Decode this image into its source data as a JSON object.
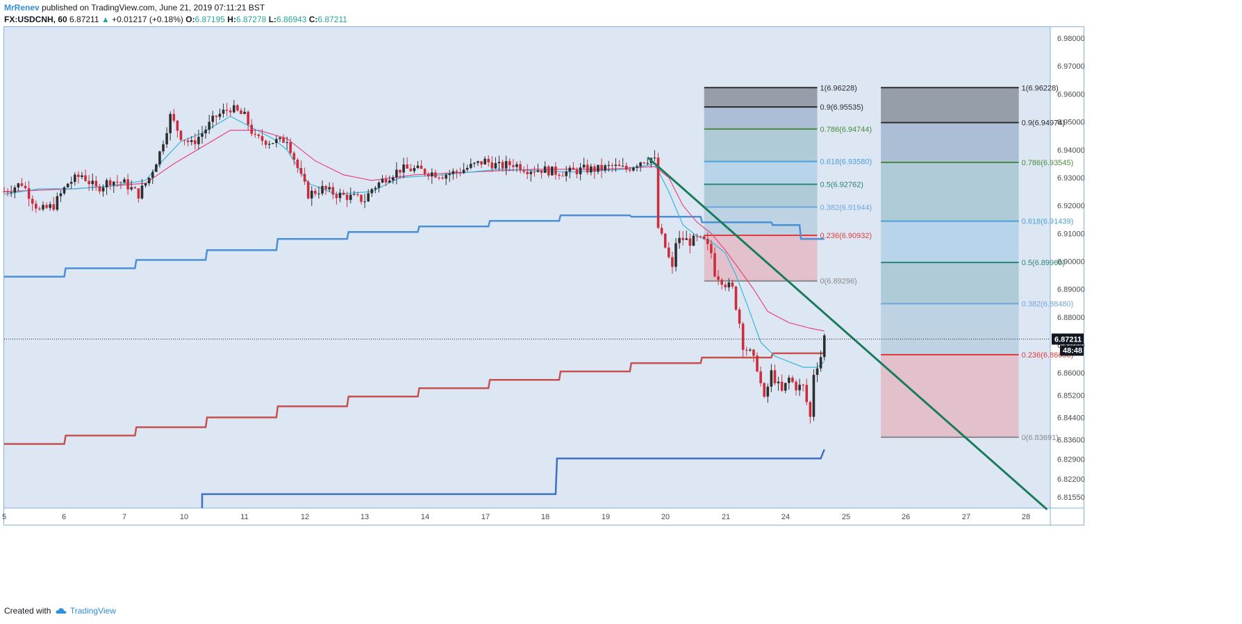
{
  "header": {
    "author": "MrRenev",
    "published": "published on TradingView.com, June 21, 2019 07:11:21 BST",
    "symbol": "FX:USDCNH, 60",
    "last": "6.87211",
    "change": "+0.01217 (+0.18%)",
    "o_label": "O:",
    "o_value": "6.87195",
    "h_label": "H:",
    "h_value": "6.87278",
    "l_label": "L:",
    "l_value": "6.86943",
    "c_label": "C:",
    "c_value": "6.87211"
  },
  "footer": {
    "created_with": "Created with",
    "brand": "TradingView"
  },
  "chart_data": {
    "type": "candlestick",
    "symbol": "FX:USDCNH",
    "interval": "60",
    "ylim": [
      6.8115,
      6.984
    ],
    "price_ticks": [
      "6.98000",
      "6.97000",
      "6.96000",
      "6.95000",
      "6.94000",
      "6.93000",
      "6.92000",
      "6.91000",
      "6.90000",
      "6.89000",
      "6.88000",
      "6.87000",
      "6.86000",
      "6.85200",
      "6.84400",
      "6.83600",
      "6.82900",
      "6.82200",
      "6.81550"
    ],
    "x_ticks": [
      "5",
      "6",
      "7",
      "10",
      "11",
      "12",
      "13",
      "14",
      "17",
      "18",
      "19",
      "20",
      "21",
      "24",
      "25",
      "26",
      "27",
      "28"
    ],
    "last_price_label": "6.87211",
    "countdown": "48:48",
    "colors": {
      "background": "#dde7f3",
      "up": "#2e2e2e",
      "down": "#cc2d3d",
      "ema_fast": "#3ab5dc",
      "ema_slow": "#e8457f",
      "trendline": "#1b7a5c",
      "upper_band": "#4a90d9",
      "middle_band": "#c4504f",
      "lower_band": "#3e6fc2"
    },
    "candles_anchor_path": [
      [
        0,
        6.925
      ],
      [
        5,
        6.928
      ],
      [
        10,
        6.918
      ],
      [
        14,
        6.92
      ],
      [
        18,
        6.928
      ],
      [
        22,
        6.931
      ],
      [
        26,
        6.926
      ],
      [
        30,
        6.929
      ],
      [
        34,
        6.928
      ],
      [
        38,
        6.924
      ],
      [
        41,
        6.93
      ],
      [
        44,
        6.939
      ],
      [
        47,
        6.952
      ],
      [
        50,
        6.945
      ],
      [
        53,
        6.942
      ],
      [
        56,
        6.946
      ],
      [
        60,
        6.952
      ],
      [
        64,
        6.955
      ],
      [
        68,
        6.952
      ],
      [
        71,
        6.944
      ],
      [
        75,
        6.943
      ],
      [
        78,
        6.943
      ],
      [
        80,
        6.944
      ],
      [
        82,
        6.937
      ],
      [
        84,
        6.93
      ],
      [
        86,
        6.924
      ],
      [
        90,
        6.926
      ],
      [
        94,
        6.924
      ],
      [
        98,
        6.923
      ],
      [
        102,
        6.922
      ],
      [
        104,
        6.926
      ],
      [
        108,
        6.93
      ],
      [
        112,
        6.933
      ],
      [
        116,
        6.933
      ],
      [
        120,
        6.932
      ],
      [
        124,
        6.931
      ],
      [
        128,
        6.932
      ],
      [
        132,
        6.934
      ],
      [
        136,
        6.936
      ],
      [
        140,
        6.934
      ],
      [
        144,
        6.935
      ],
      [
        148,
        6.933
      ],
      [
        152,
        6.933
      ],
      [
        156,
        6.932
      ],
      [
        160,
        6.932
      ],
      [
        164,
        6.933
      ],
      [
        168,
        6.933
      ],
      [
        172,
        6.934
      ],
      [
        176,
        6.933
      ],
      [
        180,
        6.936
      ],
      [
        183,
        6.937
      ],
      [
        184,
        6.936
      ],
      [
        185,
        6.912
      ],
      [
        187,
        6.905
      ],
      [
        189,
        6.897
      ],
      [
        190,
        6.907
      ],
      [
        192,
        6.908
      ],
      [
        194,
        6.907
      ],
      [
        196,
        6.908
      ],
      [
        198,
        6.907
      ],
      [
        200,
        6.903
      ],
      [
        201,
        6.896
      ],
      [
        204,
        6.892
      ],
      [
        206,
        6.89
      ],
      [
        208,
        6.878
      ],
      [
        209,
        6.87
      ],
      [
        211,
        6.867
      ],
      [
        213,
        6.862
      ],
      [
        215,
        6.85
      ],
      [
        217,
        6.86
      ],
      [
        220,
        6.853
      ],
      [
        222,
        6.858
      ],
      [
        224,
        6.855
      ],
      [
        226,
        6.855
      ],
      [
        228,
        6.844
      ],
      [
        229,
        6.86
      ],
      [
        231,
        6.866
      ],
      [
        232,
        6.873
      ]
    ],
    "ema_fast_path": [
      [
        0,
        6.924
      ],
      [
        10,
        6.926
      ],
      [
        20,
        6.926
      ],
      [
        30,
        6.927
      ],
      [
        40,
        6.929
      ],
      [
        44,
        6.935
      ],
      [
        50,
        6.943
      ],
      [
        56,
        6.946
      ],
      [
        64,
        6.952
      ],
      [
        70,
        6.948
      ],
      [
        76,
        6.944
      ],
      [
        80,
        6.94
      ],
      [
        86,
        6.928
      ],
      [
        94,
        6.924
      ],
      [
        104,
        6.925
      ],
      [
        112,
        6.93
      ],
      [
        124,
        6.931
      ],
      [
        140,
        6.933
      ],
      [
        160,
        6.932
      ],
      [
        176,
        6.933
      ],
      [
        184,
        6.935
      ],
      [
        188,
        6.925
      ],
      [
        192,
        6.913
      ],
      [
        196,
        6.909
      ],
      [
        200,
        6.907
      ],
      [
        204,
        6.903
      ],
      [
        207,
        6.895
      ],
      [
        210,
        6.885
      ],
      [
        214,
        6.871
      ],
      [
        218,
        6.866
      ],
      [
        222,
        6.864
      ],
      [
        226,
        6.862
      ],
      [
        230,
        6.862
      ],
      [
        232,
        6.864
      ]
    ],
    "ema_slow_path": [
      [
        0,
        6.925
      ],
      [
        20,
        6.926
      ],
      [
        40,
        6.928
      ],
      [
        48,
        6.935
      ],
      [
        56,
        6.941
      ],
      [
        64,
        6.947
      ],
      [
        72,
        6.947
      ],
      [
        80,
        6.944
      ],
      [
        88,
        6.936
      ],
      [
        96,
        6.931
      ],
      [
        104,
        6.929
      ],
      [
        116,
        6.931
      ],
      [
        132,
        6.932
      ],
      [
        150,
        6.933
      ],
      [
        170,
        6.933
      ],
      [
        184,
        6.934
      ],
      [
        188,
        6.93
      ],
      [
        192,
        6.92
      ],
      [
        196,
        6.914
      ],
      [
        200,
        6.91
      ],
      [
        204,
        6.904
      ],
      [
        208,
        6.897
      ],
      [
        212,
        6.89
      ],
      [
        216,
        6.882
      ],
      [
        222,
        6.878
      ],
      [
        228,
        6.876
      ],
      [
        232,
        6.875
      ]
    ],
    "upper_band_steps": [
      [
        0,
        6.8945
      ],
      [
        17,
        6.8975
      ],
      [
        37,
        6.9005
      ],
      [
        57,
        6.904
      ],
      [
        77,
        6.908
      ],
      [
        97,
        6.9105
      ],
      [
        117,
        6.9125
      ],
      [
        137,
        6.9145
      ],
      [
        157,
        6.9165
      ],
      [
        177,
        6.916
      ],
      [
        197,
        6.914
      ],
      [
        217,
        6.913
      ],
      [
        225,
        6.908
      ]
    ],
    "middle_band_steps": [
      [
        0,
        6.8345
      ],
      [
        17,
        6.8375
      ],
      [
        37,
        6.8405
      ],
      [
        57,
        6.844
      ],
      [
        77,
        6.848
      ],
      [
        97,
        6.8515
      ],
      [
        117,
        6.8545
      ],
      [
        137,
        6.8575
      ],
      [
        157,
        6.8605
      ],
      [
        177,
        6.8635
      ],
      [
        197,
        6.8655
      ],
      [
        217,
        6.867
      ]
    ],
    "lower_band_steps": [
      [
        56,
        6.8165
      ],
      [
        156,
        6.8293
      ]
    ],
    "trendline": {
      "from": [
        182,
        6.9373
      ],
      "to": [
        295,
        6.811
      ]
    },
    "fib_left": {
      "from_x": 198,
      "to_x": 230,
      "levels": [
        {
          "ratio": "1",
          "price": 6.96228,
          "label": "1(6.96228)",
          "color": "#2b2b2b",
          "fill": "#8e97a1"
        },
        {
          "ratio": "0.9",
          "price": 6.95535,
          "label": "0.9(6.95535)",
          "color": "#2b2b2b",
          "fill": "#a6b9d1"
        },
        {
          "ratio": "0.786",
          "price": 6.94744,
          "label": "0.786(6.94744)",
          "color": "#4a8a3a",
          "fill": "#a9c8d4"
        },
        {
          "ratio": "0.618",
          "price": 6.9358,
          "label": "0.618(6.93580)",
          "color": "#4c9fd8",
          "fill": "#b4d2ea"
        },
        {
          "ratio": "0.5",
          "price": 6.92762,
          "label": "0.5(6.92762)",
          "color": "#2a8474",
          "fill": "#a9c8d4"
        },
        {
          "ratio": "0.382",
          "price": 6.91944,
          "label": "0.382(6.91944)",
          "color": "#6fa6de",
          "fill": "#b9d0e2"
        },
        {
          "ratio": "0.236",
          "price": 6.90932,
          "label": "0.236(6.90932)",
          "color": "#e23b3b",
          "fill": "#e2bcc8"
        },
        {
          "ratio": "0",
          "price": 6.89296,
          "label": "0(6.89296)",
          "color": "#888888",
          "fill": null
        }
      ]
    },
    "fib_right": {
      "from_x": 248,
      "to_x": 287,
      "levels": [
        {
          "ratio": "1",
          "price": 6.96228,
          "label": "1(6.96228)",
          "color": "#2b2b2b",
          "fill": "#8e97a1"
        },
        {
          "ratio": "0.9",
          "price": 6.94974,
          "label": "0.9(6.94974)",
          "color": "#2b2b2b",
          "fill": "#a6b9d1"
        },
        {
          "ratio": "0.786",
          "price": 6.93545,
          "label": "0.786(6.93545)",
          "color": "#4a8a3a",
          "fill": "#a9c8d4"
        },
        {
          "ratio": "0.618",
          "price": 6.91439,
          "label": "0.618(6.91439)",
          "color": "#4c9fd8",
          "fill": "#b4d2ea"
        },
        {
          "ratio": "0.5",
          "price": 6.8996,
          "label": "0.5(6.89960)",
          "color": "#2a8474",
          "fill": "#a9c8d4"
        },
        {
          "ratio": "0.382",
          "price": 6.8848,
          "label": "0.382(6.88480)",
          "color": "#6fa6de",
          "fill": "#b9d0e2"
        },
        {
          "ratio": "0.236",
          "price": 6.8665,
          "label": "0.236(6.86650)",
          "color": "#e23b3b",
          "fill": "#e2bcc8"
        },
        {
          "ratio": "0",
          "price": 6.83691,
          "label": "0(6.83691)",
          "color": "#888888",
          "fill": null
        }
      ]
    }
  }
}
